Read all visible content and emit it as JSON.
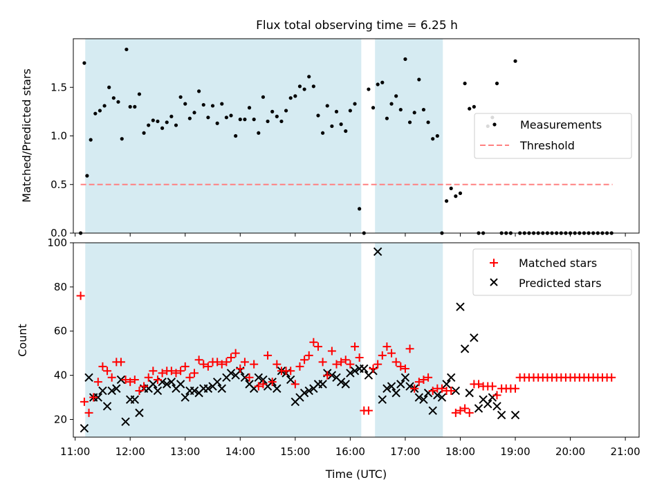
{
  "figure": {
    "title": "Flux total observing time = 6.25 h",
    "xlabel": "Time (UTC)",
    "x_ticks": [
      "11:00",
      "12:00",
      "13:00",
      "14:00",
      "15:00",
      "16:00",
      "17:00",
      "18:00",
      "19:00",
      "20:00",
      "21:00"
    ],
    "colors": {
      "shade": "#add8e6",
      "threshold": "#ff8080",
      "measurement": "#000000",
      "matched": "#ff0000",
      "predicted": "#000000"
    }
  },
  "chart_data": [
    {
      "type": "scatter",
      "ylabel": "Matched/Predicted stars",
      "xlim": [
        "10:58",
        "21:15"
      ],
      "ylim": [
        0,
        2.0
      ],
      "y_ticks": [
        "0.0",
        "0.5",
        "1.0",
        "1.5"
      ],
      "shaded_intervals": [
        [
          "11:11",
          "16:12"
        ],
        [
          "16:27",
          "17:41"
        ]
      ],
      "threshold": {
        "name": "Threshold",
        "value": 0.5,
        "x_range": [
          "11:06",
          "20:46"
        ]
      },
      "series": [
        {
          "name": "Measurements",
          "x": [
            "11:06",
            "11:10",
            "11:13",
            "11:17",
            "11:22",
            "11:27",
            "11:32",
            "11:37",
            "11:42",
            "11:47",
            "11:51",
            "11:56",
            "12:00",
            "12:05",
            "12:10",
            "12:15",
            "12:20",
            "12:25",
            "12:30",
            "12:35",
            "12:40",
            "12:45",
            "12:50",
            "12:55",
            "13:00",
            "13:05",
            "13:10",
            "13:15",
            "13:20",
            "13:25",
            "13:30",
            "13:35",
            "13:40",
            "13:45",
            "13:50",
            "13:55",
            "14:00",
            "14:05",
            "14:10",
            "14:15",
            "14:20",
            "14:25",
            "14:30",
            "14:35",
            "14:40",
            "14:45",
            "14:50",
            "14:55",
            "15:00",
            "15:05",
            "15:10",
            "15:15",
            "15:20",
            "15:25",
            "15:30",
            "15:35",
            "15:40",
            "15:45",
            "15:50",
            "15:55",
            "16:00",
            "16:05",
            "16:10",
            "16:15",
            "16:20",
            "16:25",
            "16:30",
            "16:35",
            "16:40",
            "16:45",
            "16:50",
            "16:55",
            "17:00",
            "17:05",
            "17:10",
            "17:15",
            "17:20",
            "17:25",
            "17:30",
            "17:35",
            "17:40",
            "17:45",
            "17:50",
            "17:55",
            "18:00",
            "18:05",
            "18:10",
            "18:15",
            "18:20",
            "18:25",
            "18:30",
            "18:35",
            "18:40",
            "18:45",
            "18:50",
            "18:55",
            "19:00",
            "19:05",
            "19:10",
            "19:15",
            "19:20",
            "19:25",
            "19:30",
            "19:35",
            "19:40",
            "19:45",
            "19:50",
            "19:55",
            "20:00",
            "20:05",
            "20:10",
            "20:15",
            "20:20",
            "20:25",
            "20:30",
            "20:35",
            "20:40",
            "20:45"
          ],
          "y": [
            0.0,
            1.75,
            0.59,
            0.96,
            1.23,
            1.26,
            1.31,
            1.5,
            1.39,
            1.35,
            0.97,
            1.89,
            1.3,
            1.3,
            1.43,
            1.03,
            1.11,
            1.16,
            1.15,
            1.08,
            1.14,
            1.2,
            1.11,
            1.4,
            1.33,
            1.18,
            1.24,
            1.46,
            1.32,
            1.19,
            1.31,
            1.13,
            1.33,
            1.19,
            1.21,
            1.0,
            1.17,
            1.17,
            1.29,
            1.17,
            1.03,
            1.4,
            1.15,
            1.25,
            1.2,
            1.15,
            1.26,
            1.39,
            1.41,
            1.51,
            1.48,
            1.61,
            1.51,
            1.21,
            1.03,
            1.31,
            1.1,
            1.25,
            1.12,
            1.05,
            1.26,
            1.33,
            0.25,
            0.0,
            1.48,
            1.29,
            1.53,
            1.55,
            1.18,
            1.33,
            1.41,
            1.27,
            1.79,
            1.14,
            1.24,
            1.58,
            1.27,
            1.14,
            0.97,
            1.0,
            0.0,
            0.33,
            0.46,
            0.38,
            0.41,
            1.54,
            1.28,
            1.3,
            0.0,
            0.0,
            1.1,
            1.19,
            1.54,
            0.0,
            0.0,
            0.0,
            1.77,
            0.0,
            0.0,
            0.0,
            0.0,
            0.0,
            0.0,
            0.0,
            0.0,
            0.0,
            0.0,
            0.0,
            0.0,
            0.0,
            0.0,
            0.0,
            0.0,
            0.0,
            0.0,
            0.0,
            0.0,
            0.0
          ]
        }
      ],
      "legend": {
        "location": "center-right",
        "entries": [
          "Measurements",
          "Threshold"
        ]
      }
    },
    {
      "type": "scatter",
      "ylabel": "Count",
      "xlabel": "Time (UTC)",
      "xlim": [
        "10:58",
        "21:15"
      ],
      "ylim": [
        12,
        100
      ],
      "y_ticks": [
        "20",
        "40",
        "60",
        "80",
        "100"
      ],
      "shaded_intervals": [
        [
          "11:11",
          "16:12"
        ],
        [
          "16:27",
          "17:41"
        ]
      ],
      "series": [
        {
          "name": "Matched stars",
          "marker": "plus",
          "x": [
            "11:06",
            "11:10",
            "11:15",
            "11:20",
            "11:25",
            "11:30",
            "11:35",
            "11:40",
            "11:45",
            "11:50",
            "11:55",
            "12:00",
            "12:05",
            "12:10",
            "12:15",
            "12:20",
            "12:25",
            "12:30",
            "12:35",
            "12:40",
            "12:45",
            "12:50",
            "12:55",
            "13:00",
            "13:05",
            "13:10",
            "13:15",
            "13:20",
            "13:25",
            "13:30",
            "13:35",
            "13:40",
            "13:45",
            "13:50",
            "13:55",
            "14:00",
            "14:05",
            "14:10",
            "14:15",
            "14:20",
            "14:25",
            "14:30",
            "14:35",
            "14:40",
            "14:45",
            "14:50",
            "14:55",
            "15:00",
            "15:05",
            "15:10",
            "15:15",
            "15:20",
            "15:25",
            "15:30",
            "15:35",
            "15:40",
            "15:45",
            "15:50",
            "15:55",
            "16:00",
            "16:05",
            "16:10",
            "16:15",
            "16:20",
            "16:25",
            "16:30",
            "16:35",
            "16:40",
            "16:45",
            "16:50",
            "16:55",
            "17:00",
            "17:05",
            "17:10",
            "17:15",
            "17:20",
            "17:25",
            "17:30",
            "17:35",
            "17:40",
            "17:45",
            "17:50",
            "17:55",
            "18:00",
            "18:05",
            "18:10",
            "18:15",
            "18:20",
            "18:25",
            "18:30",
            "18:35",
            "18:40",
            "18:45",
            "18:50",
            "18:55",
            "19:00",
            "19:05",
            "19:10",
            "19:15",
            "19:20",
            "19:25",
            "19:30",
            "19:35",
            "19:40",
            "19:45",
            "19:50",
            "19:55",
            "20:00",
            "20:05",
            "20:10",
            "20:15",
            "20:20",
            "20:25",
            "20:30",
            "20:35",
            "20:40",
            "20:45"
          ],
          "y": [
            76,
            28,
            23,
            30,
            37,
            44,
            42,
            39,
            46,
            46,
            38,
            37,
            38,
            33,
            35,
            39,
            42,
            38,
            41,
            42,
            42,
            41,
            42,
            44,
            39,
            41,
            47,
            45,
            44,
            46,
            46,
            45,
            46,
            48,
            50,
            43,
            46,
            39,
            45,
            35,
            36,
            49,
            37,
            45,
            42,
            42,
            42,
            36,
            44,
            47,
            49,
            55,
            53,
            46,
            40,
            51,
            45,
            46,
            47,
            45,
            53,
            48,
            24,
            24,
            43,
            45,
            49,
            53,
            50,
            46,
            44,
            43,
            52,
            34,
            37,
            38,
            39,
            33,
            34,
            34,
            33,
            33,
            23,
            24,
            25,
            23,
            36,
            36,
            35,
            35,
            35,
            31,
            34,
            34,
            34,
            34,
            39,
            39,
            39,
            39,
            39,
            39,
            39,
            39,
            39,
            39,
            39,
            39,
            39,
            39,
            39,
            39,
            39,
            39,
            39,
            39,
            39
          ]
        },
        {
          "name": "Predicted stars",
          "marker": "x",
          "x": [
            "11:10",
            "11:15",
            "11:20",
            "11:25",
            "11:30",
            "11:35",
            "11:40",
            "11:45",
            "11:50",
            "11:55",
            "12:00",
            "12:05",
            "12:10",
            "12:15",
            "12:20",
            "12:25",
            "12:30",
            "12:35",
            "12:40",
            "12:45",
            "12:50",
            "12:55",
            "13:00",
            "13:05",
            "13:10",
            "13:15",
            "13:20",
            "13:25",
            "13:30",
            "13:35",
            "13:40",
            "13:45",
            "13:50",
            "13:55",
            "14:00",
            "14:05",
            "14:10",
            "14:15",
            "14:20",
            "14:25",
            "14:30",
            "14:35",
            "14:40",
            "14:45",
            "14:50",
            "14:55",
            "15:00",
            "15:05",
            "15:10",
            "15:15",
            "15:20",
            "15:25",
            "15:30",
            "15:35",
            "15:40",
            "15:45",
            "15:50",
            "15:55",
            "16:00",
            "16:05",
            "16:10",
            "16:15",
            "16:20",
            "16:25",
            "16:30",
            "16:35",
            "16:40",
            "16:45",
            "16:50",
            "16:55",
            "17:00",
            "17:05",
            "17:10",
            "17:15",
            "17:20",
            "17:25",
            "17:30",
            "17:35",
            "17:40",
            "17:45",
            "17:50",
            "17:55",
            "18:00",
            "18:05",
            "18:10",
            "18:15",
            "18:20",
            "18:25",
            "18:30",
            "18:35",
            "18:40",
            "18:45",
            "19:00"
          ],
          "y": [
            16,
            39,
            30,
            30,
            33,
            26,
            33,
            34,
            38,
            19,
            29,
            29,
            23,
            34,
            34,
            36,
            33,
            37,
            36,
            37,
            34,
            36,
            30,
            33,
            33,
            32,
            34,
            34,
            35,
            37,
            34,
            39,
            41,
            40,
            42,
            39,
            36,
            34,
            39,
            38,
            35,
            37,
            34,
            42,
            41,
            38,
            28,
            30,
            32,
            33,
            34,
            36,
            36,
            41,
            40,
            39,
            37,
            36,
            41,
            42,
            43,
            43,
            40,
            42,
            96,
            29,
            34,
            35,
            32,
            36,
            39,
            35,
            34,
            30,
            29,
            32,
            24,
            31,
            30,
            36,
            39,
            33,
            71,
            52,
            32,
            57,
            25,
            29,
            27,
            30,
            26,
            22,
            22
          ]
        }
      ],
      "legend": {
        "location": "top-right",
        "entries": [
          "Matched stars",
          "Predicted stars"
        ]
      }
    }
  ]
}
